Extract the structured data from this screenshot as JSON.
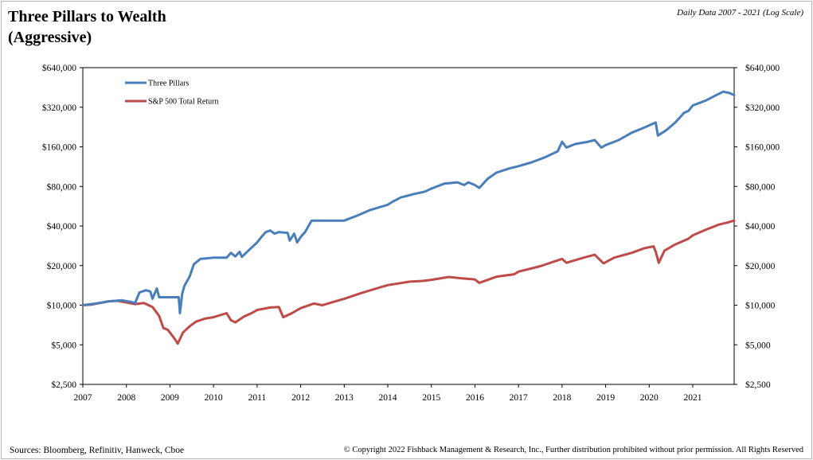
{
  "header": {
    "title_line1": "Three Pillars to Wealth",
    "title_line2": "(Aggressive)",
    "subtitle": "Daily Data 2007 - 2021 (Log Scale)"
  },
  "footer": {
    "sources": "Sources: Bloomberg, Refinitiv, Hanweck, Cboe",
    "copyright": "© Copyright 2022 Fishback Management & Research, Inc., Further distribution prohibited without prior permission. All Rights Reserved"
  },
  "chart_data": {
    "type": "line",
    "title": "Three Pillars to Wealth (Aggressive)",
    "subtitle": "Daily Data 2007 - 2021 (Log Scale)",
    "y_scale": "log",
    "ylim": [
      2500,
      640000
    ],
    "xlim": [
      2007,
      2021.95
    ],
    "y_ticks": [
      2500,
      5000,
      10000,
      20000,
      40000,
      80000,
      160000,
      320000,
      640000
    ],
    "y_tick_labels": [
      "$2,500",
      "$5,000",
      "$10,000",
      "$20,000",
      "$40,000",
      "$80,000",
      "$160,000",
      "$320,000",
      "$640,000"
    ],
    "x_ticks": [
      2007,
      2008,
      2009,
      2010,
      2011,
      2012,
      2013,
      2014,
      2015,
      2016,
      2017,
      2018,
      2019,
      2020,
      2021
    ],
    "x_tick_labels": [
      "2007",
      "2008",
      "2009",
      "2010",
      "2011",
      "2012",
      "2013",
      "2014",
      "2015",
      "2016",
      "2017",
      "2018",
      "2019",
      "2020",
      "2021"
    ],
    "grid": false,
    "legend_position": "top-left",
    "series": [
      {
        "name": "Three Pillars",
        "color": "#4a7ebb",
        "points": [
          [
            2007.0,
            10000
          ],
          [
            2007.3,
            10300
          ],
          [
            2007.6,
            10700
          ],
          [
            2007.9,
            10900
          ],
          [
            2008.1,
            10600
          ],
          [
            2008.2,
            10400
          ],
          [
            2008.3,
            12500
          ],
          [
            2008.45,
            13000
          ],
          [
            2008.55,
            12700
          ],
          [
            2008.6,
            11200
          ],
          [
            2008.7,
            13400
          ],
          [
            2008.75,
            11500
          ],
          [
            2009.2,
            11500
          ],
          [
            2009.23,
            8700
          ],
          [
            2009.28,
            12200
          ],
          [
            2009.33,
            14000
          ],
          [
            2009.45,
            16500
          ],
          [
            2009.55,
            20500
          ],
          [
            2009.7,
            22500
          ],
          [
            2010.0,
            23000
          ],
          [
            2010.3,
            23000
          ],
          [
            2010.4,
            25000
          ],
          [
            2010.5,
            23500
          ],
          [
            2010.6,
            25500
          ],
          [
            2010.65,
            23300
          ],
          [
            2010.8,
            26000
          ],
          [
            2011.0,
            30000
          ],
          [
            2011.1,
            33000
          ],
          [
            2011.2,
            36000
          ],
          [
            2011.3,
            37000
          ],
          [
            2011.4,
            35000
          ],
          [
            2011.5,
            36000
          ],
          [
            2011.7,
            35500
          ],
          [
            2011.75,
            31000
          ],
          [
            2011.85,
            35000
          ],
          [
            2011.92,
            30000
          ],
          [
            2012.0,
            33000
          ],
          [
            2012.1,
            36000
          ],
          [
            2012.25,
            44000
          ],
          [
            2013.0,
            44000
          ],
          [
            2013.3,
            48000
          ],
          [
            2013.6,
            53000
          ],
          [
            2014.0,
            58000
          ],
          [
            2014.1,
            61000
          ],
          [
            2014.3,
            66000
          ],
          [
            2014.6,
            70000
          ],
          [
            2014.85,
            73000
          ],
          [
            2015.0,
            77000
          ],
          [
            2015.3,
            84000
          ],
          [
            2015.6,
            86000
          ],
          [
            2015.75,
            82000
          ],
          [
            2015.85,
            86000
          ],
          [
            2016.0,
            82000
          ],
          [
            2016.1,
            78000
          ],
          [
            2016.3,
            92000
          ],
          [
            2016.5,
            102000
          ],
          [
            2016.8,
            110000
          ],
          [
            2017.0,
            114000
          ],
          [
            2017.3,
            122000
          ],
          [
            2017.6,
            133000
          ],
          [
            2017.9,
            148000
          ],
          [
            2018.0,
            175000
          ],
          [
            2018.1,
            158000
          ],
          [
            2018.3,
            168000
          ],
          [
            2018.6,
            175000
          ],
          [
            2018.75,
            180000
          ],
          [
            2018.9,
            158000
          ],
          [
            2019.0,
            165000
          ],
          [
            2019.3,
            180000
          ],
          [
            2019.6,
            205000
          ],
          [
            2019.9,
            225000
          ],
          [
            2020.15,
            245000
          ],
          [
            2020.2,
            195000
          ],
          [
            2020.4,
            215000
          ],
          [
            2020.6,
            245000
          ],
          [
            2020.8,
            290000
          ],
          [
            2020.9,
            300000
          ],
          [
            2021.0,
            330000
          ],
          [
            2021.3,
            360000
          ],
          [
            2021.5,
            390000
          ],
          [
            2021.7,
            420000
          ],
          [
            2021.85,
            410000
          ],
          [
            2021.95,
            395000
          ]
        ]
      },
      {
        "name": "S&P 500 Total Return",
        "color": "#be4b48",
        "points": [
          [
            2007.0,
            10000
          ],
          [
            2007.2,
            10100
          ],
          [
            2007.4,
            10400
          ],
          [
            2007.6,
            10700
          ],
          [
            2007.8,
            10800
          ],
          [
            2008.0,
            10500
          ],
          [
            2008.2,
            10200
          ],
          [
            2008.4,
            10400
          ],
          [
            2008.6,
            9700
          ],
          [
            2008.75,
            8300
          ],
          [
            2008.85,
            6700
          ],
          [
            2008.95,
            6500
          ],
          [
            2009.0,
            6200
          ],
          [
            2009.1,
            5600
          ],
          [
            2009.18,
            5100
          ],
          [
            2009.3,
            6200
          ],
          [
            2009.45,
            6900
          ],
          [
            2009.6,
            7500
          ],
          [
            2009.8,
            7900
          ],
          [
            2010.0,
            8100
          ],
          [
            2010.3,
            8700
          ],
          [
            2010.4,
            7700
          ],
          [
            2010.5,
            7400
          ],
          [
            2010.7,
            8200
          ],
          [
            2010.9,
            8800
          ],
          [
            2011.0,
            9200
          ],
          [
            2011.3,
            9600
          ],
          [
            2011.5,
            9700
          ],
          [
            2011.6,
            8100
          ],
          [
            2011.8,
            8700
          ],
          [
            2012.0,
            9500
          ],
          [
            2012.3,
            10300
          ],
          [
            2012.5,
            10000
          ],
          [
            2012.8,
            10700
          ],
          [
            2013.0,
            11200
          ],
          [
            2013.4,
            12400
          ],
          [
            2013.8,
            13600
          ],
          [
            2014.0,
            14200
          ],
          [
            2014.5,
            15100
          ],
          [
            2014.8,
            15300
          ],
          [
            2015.0,
            15600
          ],
          [
            2015.4,
            16400
          ],
          [
            2015.7,
            16000
          ],
          [
            2016.0,
            15700
          ],
          [
            2016.1,
            14800
          ],
          [
            2016.5,
            16500
          ],
          [
            2016.9,
            17200
          ],
          [
            2017.0,
            18000
          ],
          [
            2017.5,
            19800
          ],
          [
            2018.0,
            22500
          ],
          [
            2018.1,
            21000
          ],
          [
            2018.5,
            23000
          ],
          [
            2018.75,
            24200
          ],
          [
            2018.95,
            20800
          ],
          [
            2019.2,
            23000
          ],
          [
            2019.6,
            25000
          ],
          [
            2019.9,
            27200
          ],
          [
            2020.1,
            28000
          ],
          [
            2020.15,
            25500
          ],
          [
            2020.22,
            21000
          ],
          [
            2020.35,
            26000
          ],
          [
            2020.6,
            29000
          ],
          [
            2020.9,
            32000
          ],
          [
            2021.0,
            34000
          ],
          [
            2021.3,
            37500
          ],
          [
            2021.6,
            41000
          ],
          [
            2021.8,
            42500
          ],
          [
            2021.95,
            44000
          ]
        ]
      }
    ]
  }
}
